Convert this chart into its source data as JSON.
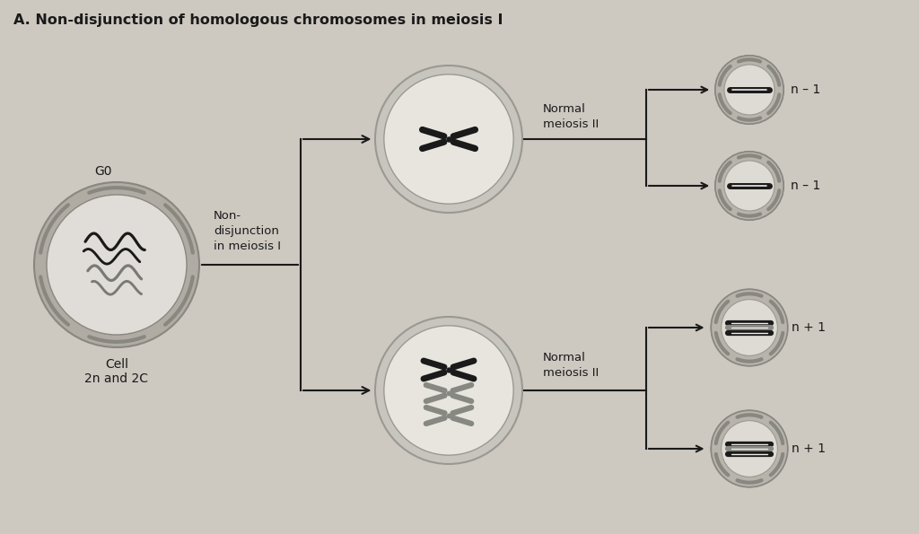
{
  "title": "A. Non-disjunction of homologous chromosomes in meiosis I",
  "bg_color": "#cdc8c0",
  "cell_outer_color": "#b0aba3",
  "cell_inner_color": "#e0ddd8",
  "mid_cell_outer": "#c8c5be",
  "mid_cell_inner": "#e8e5df",
  "small_cell_ring": "#b8b4ac",
  "small_cell_inner": "#dedad4",
  "arrow_color": "#1a1a1a",
  "text_color": "#1a1a1a",
  "label_g0": "G0",
  "label_cell": "Cell\n2n and 2C",
  "label_nondisjunction": "Non-\ndisjunction\nin meiosis I",
  "label_normal_meiosis_upper": "Normal\nmeiosis II",
  "label_normal_meiosis_lower": "Normal\nmeiosis II",
  "label_n_minus_1_a": "n – 1",
  "label_n_minus_1_b": "n – 1",
  "label_n_plus_1_a": "n + 1",
  "label_n_plus_1_b": "n + 1"
}
